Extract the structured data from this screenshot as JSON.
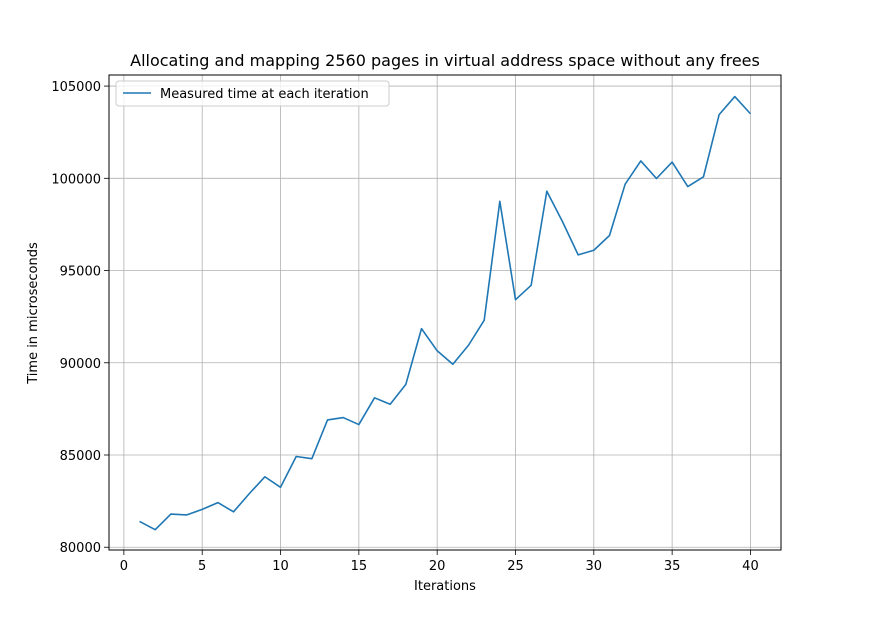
{
  "chart_data": {
    "type": "line",
    "title": "Allocating and mapping 2560 pages in virtual address space without any frees",
    "xlabel": "Iterations",
    "ylabel": "Time in microseconds",
    "xlim": [
      -0.95,
      41.95
    ],
    "ylim": [
      79850,
      105600
    ],
    "xticks": [
      0,
      5,
      10,
      15,
      20,
      25,
      30,
      35,
      40
    ],
    "yticks": [
      80000,
      85000,
      90000,
      95000,
      100000,
      105000
    ],
    "grid": true,
    "legend": "upper-left",
    "series": [
      {
        "name": "Measured time at each iteration",
        "color": "#1f77b4",
        "x": [
          1,
          2,
          3,
          4,
          5,
          6,
          7,
          8,
          9,
          10,
          11,
          12,
          13,
          14,
          15,
          16,
          17,
          18,
          19,
          20,
          21,
          22,
          23,
          24,
          25,
          26,
          27,
          28,
          29,
          30,
          31,
          32,
          33,
          34,
          35,
          36,
          37,
          38,
          39,
          40
        ],
        "y": [
          81400,
          80950,
          81800,
          81750,
          82050,
          82420,
          81920,
          82900,
          83820,
          83250,
          84920,
          84800,
          86900,
          87030,
          86650,
          88100,
          87750,
          88830,
          91850,
          90650,
          89920,
          90950,
          92300,
          98750,
          93420,
          94200,
          99300,
          97650,
          95850,
          96100,
          96900,
          99680,
          100940,
          99990,
          100880,
          99550,
          100080,
          103450,
          104430,
          103500
        ]
      }
    ]
  }
}
